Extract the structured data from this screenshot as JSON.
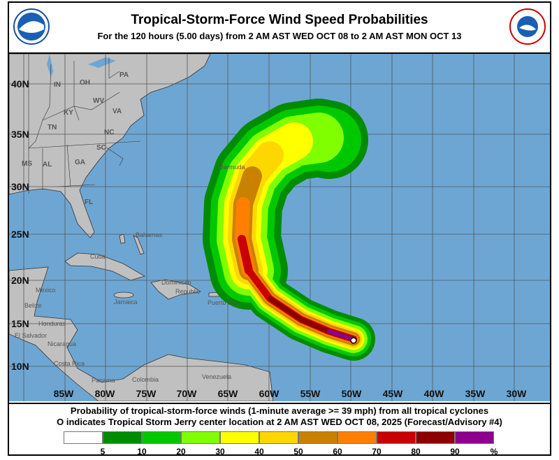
{
  "header": {
    "title": "Tropical-Storm-Force Wind Speed Probabilities",
    "subtitle": "For the 120 hours (5.00 days) from 2 AM AST WED OCT 08 to 2 AM AST MON OCT 13",
    "left_logo": "NOAA",
    "right_logo": "NATIONAL WEATHER SERVICE"
  },
  "map": {
    "colors": {
      "ocean": "#6ea6d3",
      "land": "#c0c0c0",
      "grid": "#555555"
    },
    "lat_labels": [
      "40N",
      "35N",
      "30N",
      "25N",
      "20N",
      "15N",
      "10N"
    ],
    "lon_labels": [
      "85W",
      "80W",
      "75W",
      "70W",
      "65W",
      "60W",
      "55W",
      "50W",
      "45W",
      "40W",
      "35W",
      "30W"
    ],
    "state_labels": [
      "IN",
      "OH",
      "PA",
      "WV",
      "KY",
      "VA",
      "TN",
      "NC",
      "SC",
      "MS",
      "AL",
      "GA",
      "FL"
    ],
    "place_labels": [
      "Bermuda",
      "Bahamas",
      "Cuba",
      "Mexico",
      "Belize",
      "Jamaica",
      "Dominican",
      "Republic",
      "Puerto Rico",
      "Honduras",
      "El Salvador",
      "Nicaragua",
      "Costa Rica",
      "Panama",
      "Colombia",
      "Venezuela"
    ],
    "storm_marker": "storm-center-circle"
  },
  "footer": {
    "line1": "Probability of tropical-storm-force winds (1-minute average >= 39 mph) from all tropical cyclones",
    "line2": "O indicates Tropical Storm Jerry center location at 2 AM AST WED OCT 08, 2025 (Forecast/Advisory #4)"
  },
  "legend": {
    "colors": [
      "#ffffff",
      "#008c00",
      "#00c800",
      "#80ff00",
      "#ffff00",
      "#ffd700",
      "#c88200",
      "#ff8000",
      "#c80000",
      "#8c0000",
      "#8c008c"
    ],
    "ticks": [
      "5",
      "10",
      "20",
      "30",
      "40",
      "50",
      "60",
      "70",
      "80",
      "90",
      "%"
    ]
  }
}
